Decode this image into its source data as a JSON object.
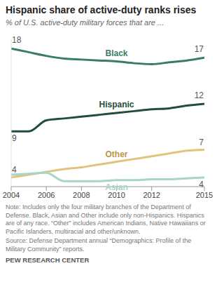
{
  "chart_data": {
    "type": "line",
    "title": "Hispanic share of active-duty ranks rises",
    "subtitle": "% of U.S. active-duty military forces that are ...",
    "x": [
      2004,
      2005,
      2006,
      2007,
      2008,
      2009,
      2010,
      2011,
      2012,
      2013,
      2014,
      2015
    ],
    "xlim": [
      2004,
      2015
    ],
    "xticks": [
      2004,
      2006,
      2008,
      2010,
      2012,
      2015
    ],
    "ylim": [
      3,
      19
    ],
    "tick_labels": "x",
    "data_labels": true,
    "series": [
      {
        "name": "Black",
        "color": "#3a7d63",
        "values": [
          18,
          17.6,
          17.2,
          16.9,
          16.8,
          16.7,
          16.6,
          16.4,
          16.3,
          16.5,
          16.7,
          17
        ],
        "value_labels": [
          "18",
          null,
          null,
          null,
          null,
          null,
          null,
          null,
          null,
          null,
          null,
          "17"
        ]
      },
      {
        "name": "Hispanic",
        "color": "#234d3b",
        "values": [
          9,
          9,
          10.2,
          10.4,
          10.6,
          10.8,
          11,
          11.2,
          11.4,
          11.5,
          11.8,
          12
        ],
        "value_labels": [
          "9",
          null,
          null,
          null,
          null,
          null,
          null,
          null,
          null,
          null,
          null,
          "12"
        ]
      },
      {
        "name": "Other",
        "color": "#e2c27d",
        "values": [
          4,
          4.3,
          4.6,
          4.9,
          5.1,
          5.4,
          5.7,
          6,
          6.3,
          6.6,
          6.9,
          7
        ],
        "value_labels": [
          "4",
          null,
          null,
          null,
          null,
          null,
          null,
          null,
          null,
          null,
          null,
          "7"
        ]
      },
      {
        "name": "Asian",
        "color": "#a8d5c6",
        "values": [
          4.3,
          4.4,
          4.5,
          3.6,
          3.6,
          3.6,
          3.7,
          3.7,
          3.8,
          3.8,
          3.9,
          4
        ],
        "value_labels": [
          null,
          null,
          null,
          null,
          null,
          null,
          null,
          null,
          null,
          null,
          null,
          "4"
        ]
      }
    ],
    "note": "Note: Includes only the four military branches of the Department of Defense. Black, Asian and Other include only non-Hispanics. Hispanics are of any race. “Other” includes American Indians, Native Hawaiians or Pacific Islanders, multiracial and other/unknown.",
    "source": "Source: Defense Department annual “Demographics: Profile of the Military Community” reports.",
    "credit": "PEW RESEARCH CENTER"
  }
}
